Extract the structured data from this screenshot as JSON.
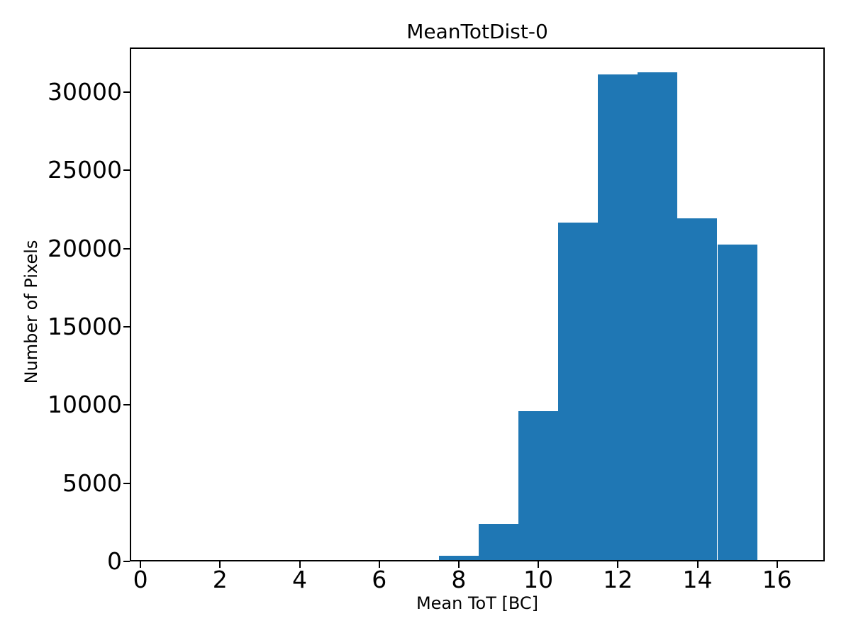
{
  "figure": {
    "background_color": "#ffffff",
    "text_color": "#000000"
  },
  "chart_data": {
    "type": "bar",
    "subtype": "histogram",
    "title": "MeanTotDist-0",
    "xlabel": "Mean ToT [BC]",
    "ylabel": "Number of Pixels",
    "bin_edges": [
      6.5,
      7.5,
      8.5,
      9.5,
      10.5,
      11.5,
      12.5,
      13.5,
      14.5,
      15.5
    ],
    "values": [
      70,
      350,
      2390,
      9590,
      21660,
      31130,
      31280,
      21940,
      20250
    ],
    "bar_color": "#1f77b4",
    "xlim": [
      -0.27,
      17.2
    ],
    "ylim": [
      0,
      32850
    ],
    "xticks": [
      0,
      2,
      4,
      6,
      8,
      10,
      12,
      14,
      16
    ],
    "xtick_labels": [
      "0",
      "2",
      "4",
      "6",
      "8",
      "10",
      "12",
      "14",
      "16"
    ],
    "yticks": [
      0,
      5000,
      10000,
      15000,
      20000,
      25000,
      30000
    ],
    "ytick_labels": [
      "0",
      "5000",
      "10000",
      "15000",
      "20000",
      "25000",
      "30000"
    ],
    "grid": false,
    "legend": null
  }
}
